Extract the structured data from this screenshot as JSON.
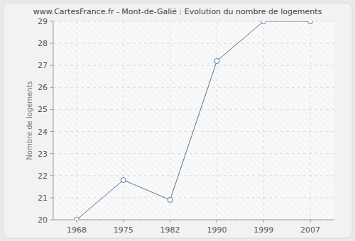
{
  "chart_data": {
    "type": "line",
    "title": "www.CartesFrance.fr - Mont-de-Galié : Evolution du nombre de logements",
    "y_label": "Nombre de logements",
    "categories": [
      "1968",
      "1975",
      "1982",
      "1990",
      "1999",
      "2007"
    ],
    "values": [
      20,
      21.8,
      20.9,
      27.2,
      29,
      29
    ],
    "color": "#4a76a3",
    "marker": "circle",
    "ylim": [
      20,
      29
    ],
    "yticks": [
      20,
      21,
      22,
      23,
      24,
      25,
      26,
      27,
      28,
      29
    ],
    "grid": true
  }
}
